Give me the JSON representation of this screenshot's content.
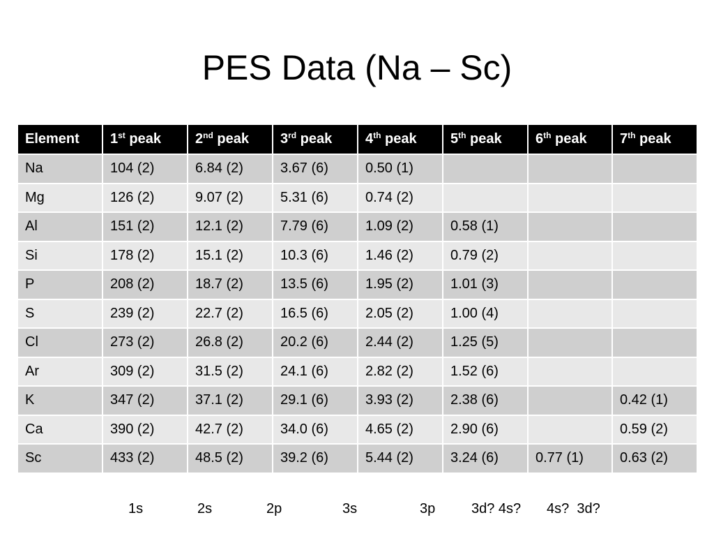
{
  "slide": {
    "title": "PES Data (Na – Sc)"
  },
  "table": {
    "header": {
      "element": "Element",
      "peaks": [
        {
          "num": "1",
          "suffix": "st",
          "word": " peak"
        },
        {
          "num": "2",
          "suffix": "nd",
          "word": " peak"
        },
        {
          "num": "3",
          "suffix": "rd",
          "word": " peak"
        },
        {
          "num": "4",
          "suffix": "th",
          "word": " peak"
        },
        {
          "num": "5",
          "suffix": "th",
          "word": " peak"
        },
        {
          "num": "6",
          "suffix": "th",
          "word": " peak"
        },
        {
          "num": "7",
          "suffix": "th",
          "word": " peak"
        }
      ]
    },
    "rows": [
      {
        "element": "Na",
        "cells": [
          "104 (2)",
          "6.84 (2)",
          "3.67 (6)",
          "0.50 (1)",
          "",
          "",
          ""
        ]
      },
      {
        "element": "Mg",
        "cells": [
          "126 (2)",
          "9.07 (2)",
          "5.31 (6)",
          "0.74 (2)",
          "",
          "",
          ""
        ]
      },
      {
        "element": "Al",
        "cells": [
          "151 (2)",
          "12.1 (2)",
          "7.79 (6)",
          "1.09 (2)",
          "0.58 (1)",
          "",
          ""
        ]
      },
      {
        "element": "Si",
        "cells": [
          "178 (2)",
          "15.1 (2)",
          "10.3 (6)",
          "1.46 (2)",
          "0.79 (2)",
          "",
          ""
        ]
      },
      {
        "element": "P",
        "cells": [
          "208 (2)",
          "18.7 (2)",
          "13.5 (6)",
          "1.95 (2)",
          "1.01 (3)",
          "",
          ""
        ]
      },
      {
        "element": "S",
        "cells": [
          "239 (2)",
          "22.7 (2)",
          "16.5 (6)",
          "2.05 (2)",
          "1.00 (4)",
          "",
          ""
        ]
      },
      {
        "element": "Cl",
        "cells": [
          "273 (2)",
          "26.8 (2)",
          "20.2 (6)",
          "2.44 (2)",
          "1.25 (5)",
          "",
          ""
        ]
      },
      {
        "element": "Ar",
        "cells": [
          "309 (2)",
          "31.5 (2)",
          "24.1 (6)",
          "2.82 (2)",
          "1.52 (6)",
          "",
          ""
        ]
      },
      {
        "element": "K",
        "cells": [
          "347 (2)",
          "37.1 (2)",
          "29.1 (6)",
          "3.93 (2)",
          "2.38 (6)",
          "",
          "0.42 (1)"
        ]
      },
      {
        "element": "Ca",
        "cells": [
          "390 (2)",
          "42.7 (2)",
          "34.0 (6)",
          "4.65 (2)",
          "2.90 (6)",
          "",
          "0.59 (2)"
        ]
      },
      {
        "element": "Sc",
        "cells": [
          "433 (2)",
          "48.5 (2)",
          "39.2 (6)",
          "5.44 (2)",
          "3.24 (6)",
          "0.77 (1)",
          "0.63 (2)"
        ]
      }
    ]
  },
  "orbitals": [
    "1s",
    "2s",
    "2p",
    "3s",
    "3p",
    "3d? 4s?",
    "4s?  3d?"
  ]
}
